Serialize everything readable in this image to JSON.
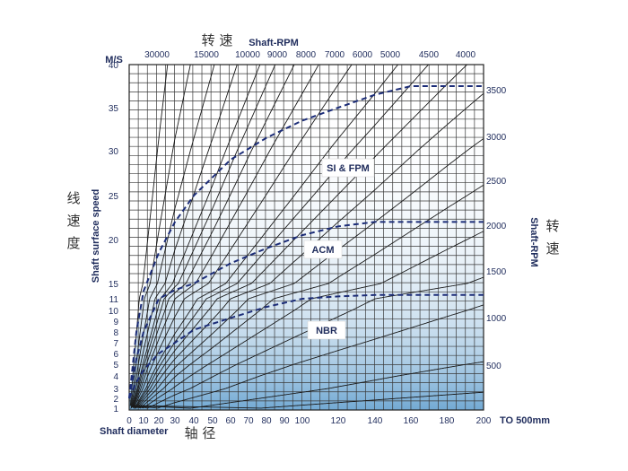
{
  "chart_data": {
    "type": "line",
    "units_label": "M/S",
    "left_axis_label": "Shaft surface speed",
    "left_axis_label_cn": "线\n速\n度",
    "top_axis_label": "Shaft-RPM",
    "top_axis_label_cn": "转 速",
    "right_axis_label": "Shaft-RPM",
    "right_axis_label_cn": "转\n速",
    "bottom_axis_label": "Shaft diameter",
    "bottom_axis_label_cn": "轴 径",
    "bottom_extra_label": "TO 500mm",
    "y_ticks": [
      1,
      2,
      3,
      4,
      5,
      6,
      7,
      8,
      9,
      10,
      11,
      15,
      20,
      25,
      30,
      35,
      40
    ],
    "x_ticks": [
      0,
      10,
      20,
      30,
      40,
      50,
      60,
      70,
      80,
      90,
      100,
      120,
      140,
      160,
      180,
      200
    ],
    "top_rpm_labels": [
      "30000",
      "15000",
      "10000",
      "9000",
      "8000",
      "7000",
      "6000",
      "5000",
      "4500",
      "4000"
    ],
    "right_rpm_labels": [
      "500",
      "1000",
      "1500",
      "2000",
      "2500",
      "3000",
      "3500"
    ],
    "rpm_lines": [
      30000,
      20000,
      15000,
      12000,
      10000,
      9000,
      8000,
      7000,
      6000,
      5000,
      4500,
      4000,
      3500,
      3000,
      2500,
      2000,
      1500,
      1000,
      500,
      250
    ],
    "series": [
      {
        "name": "SI & FPM",
        "x": [
          0,
          5,
          10,
          20,
          30,
          40,
          60,
          80,
          100,
          120,
          140,
          160,
          200
        ],
        "y": [
          2,
          8,
          13,
          18.5,
          22,
          25,
          29,
          31.5,
          33.5,
          35,
          36.5,
          37.5,
          37.5
        ]
      },
      {
        "name": "ACM",
        "x": [
          0,
          5,
          10,
          20,
          30,
          40,
          60,
          80,
          100,
          120,
          140,
          160,
          200
        ],
        "y": [
          2,
          5.5,
          8,
          11,
          13.3,
          15,
          17.3,
          19,
          20.5,
          21.5,
          22,
          22,
          22
        ]
      },
      {
        "name": "NBR",
        "x": [
          0,
          5,
          10,
          20,
          30,
          40,
          60,
          80,
          100,
          120,
          140,
          160,
          200
        ],
        "y": [
          2,
          3.5,
          4.5,
          6,
          7,
          8.2,
          9.3,
          10.3,
          11,
          11.6,
          12,
          12,
          12
        ]
      }
    ],
    "grid": true,
    "colors": {
      "grid": "#3a3a3a",
      "curve": "#1c2d78",
      "fill_top": "#ffffff",
      "fill_bottom": "#4f93c8",
      "text": "#1f2c5c"
    }
  }
}
